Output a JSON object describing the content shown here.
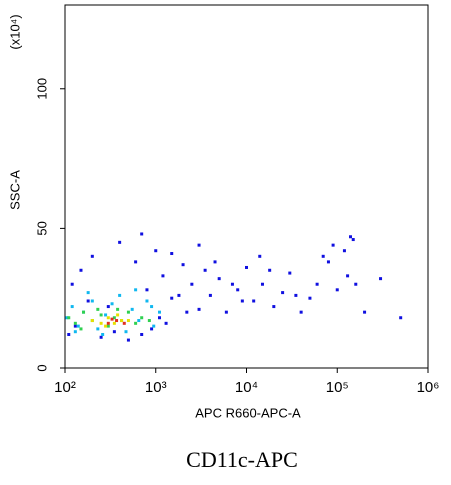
{
  "chart_data": {
    "type": "scatter",
    "xlabel": "APC R660-APC-A",
    "ylabel": "SSC-A",
    "y_multiplier": "(x10⁴)",
    "caption": "CD11c-APC",
    "xscale": "log",
    "grid": false,
    "xlim": [
      100,
      1000000
    ],
    "xticks": [
      {
        "value": 100,
        "label": "10²"
      },
      {
        "value": 1000,
        "label": "10³"
      },
      {
        "value": 10000,
        "label": "10⁴"
      },
      {
        "value": 100000,
        "label": "10⁵"
      },
      {
        "value": 1000000,
        "label": "10⁶"
      }
    ],
    "ylim": [
      0,
      130
    ],
    "yticks": [
      0,
      50,
      100
    ],
    "series": [
      {
        "color": "#1010e0",
        "x": [
          120,
          150,
          200,
          300,
          400,
          600,
          800,
          1000,
          1200,
          1500,
          2000,
          2500,
          3000,
          4000,
          5000,
          6000,
          8000,
          10000,
          12000,
          15000,
          20000,
          25000,
          30000,
          40000,
          50000,
          60000,
          80000,
          100000,
          120000,
          150000,
          200000,
          300000,
          500000,
          110,
          130,
          180,
          250,
          350,
          500,
          700,
          900,
          1100,
          1300,
          1800,
          2200,
          3500,
          4500,
          7000,
          9000,
          14000,
          18000,
          35000,
          70000,
          90000,
          130000,
          160000,
          140000,
          700,
          1500,
          3000
        ],
        "values": [
          30,
          35,
          40,
          22,
          45,
          38,
          28,
          42,
          33,
          25,
          37,
          30,
          44,
          26,
          32,
          20,
          28,
          36,
          24,
          30,
          22,
          27,
          34,
          20,
          25,
          30,
          38,
          28,
          42,
          46,
          20,
          32,
          18,
          12,
          15,
          24,
          11,
          13,
          10,
          12,
          14,
          18,
          16,
          26,
          20,
          35,
          38,
          30,
          24,
          40,
          35,
          26,
          40,
          44,
          33,
          30,
          47,
          48,
          41,
          21
        ]
      },
      {
        "color": "#10b8f0",
        "x": [
          105,
          120,
          140,
          160,
          200,
          230,
          280,
          330,
          400,
          470,
          550,
          650,
          800,
          950,
          1100,
          130,
          180,
          260,
          600,
          900
        ],
        "values": [
          18,
          22,
          15,
          20,
          24,
          14,
          19,
          23,
          26,
          13,
          21,
          17,
          24,
          15,
          20,
          13,
          27,
          12,
          28,
          22
        ]
      },
      {
        "color": "#30d050",
        "x": [
          110,
          130,
          160,
          200,
          250,
          300,
          350,
          420,
          500,
          600,
          700,
          850,
          150,
          230,
          380
        ],
        "values": [
          18,
          16,
          20,
          17,
          19,
          15,
          18,
          17,
          20,
          16,
          18,
          17,
          14,
          21,
          21
        ]
      },
      {
        "color": "#e8e000",
        "x": [
          200,
          250,
          300,
          350,
          420,
          500,
          280,
          380
        ],
        "values": [
          17,
          16,
          18,
          16,
          17,
          17,
          15,
          19
        ]
      },
      {
        "color": "#e03020",
        "x": [
          300,
          370,
          450,
          330
        ],
        "values": [
          16,
          17,
          16,
          17.5
        ]
      }
    ]
  }
}
